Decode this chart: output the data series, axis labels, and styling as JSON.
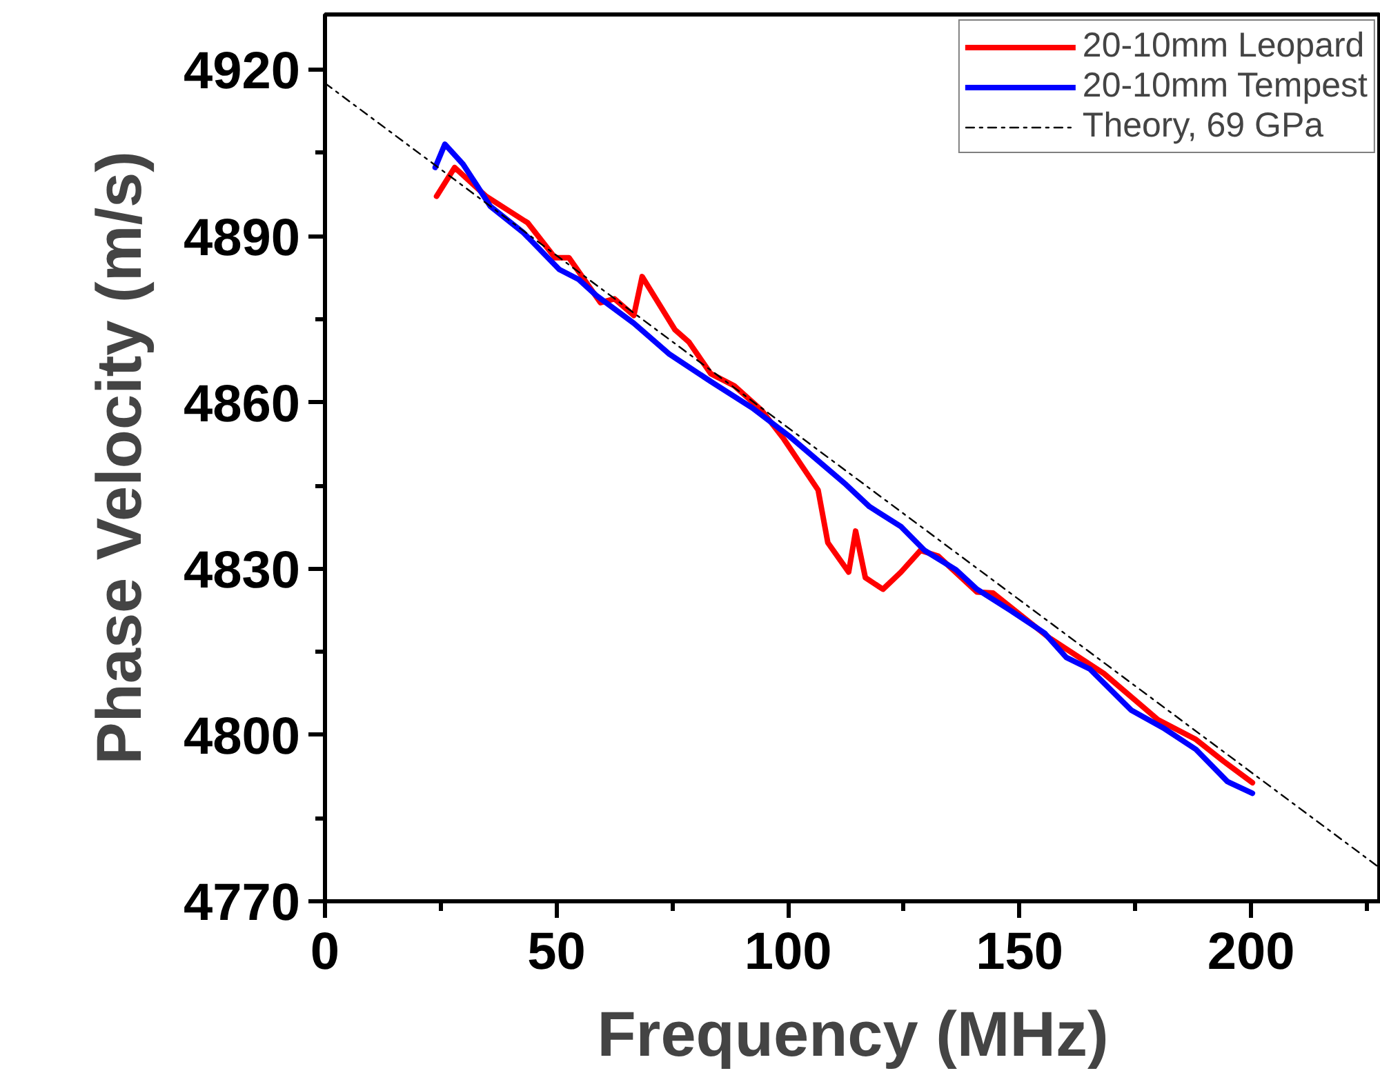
{
  "chart_data": {
    "type": "line",
    "xlabel": "Frequency (MHz)",
    "ylabel": "Phase Velocity (m/s)",
    "xlim": [
      0,
      228
    ],
    "ylim": [
      4770,
      4930
    ],
    "xticks": [
      0,
      {
        "value": 25,
        "label": null
      },
      50,
      {
        "value": 75,
        "label": null
      },
      100,
      {
        "value": 125,
        "label": null
      },
      150,
      {
        "value": 175,
        "label": null
      },
      200,
      {
        "value": 225,
        "label": null
      }
    ],
    "yticks": [
      4770,
      {
        "value": 4785,
        "label": null
      },
      4800,
      {
        "value": 4815,
        "label": null
      },
      4830,
      {
        "value": 4845,
        "label": null
      },
      4860,
      {
        "value": 4875,
        "label": null
      },
      4890,
      {
        "value": 4905,
        "label": null
      },
      4920
    ],
    "grid": false,
    "legend": "top right",
    "marker": "none",
    "series": [
      {
        "name": "20-10mm Leopard",
        "color": "#ff0000",
        "line_style": "solid",
        "x": [
          24.1,
          28,
          34.8,
          43.8,
          49.7,
          52.7,
          59.5,
          62.5,
          66.7,
          68.5,
          75.6,
          78.6,
          83.3,
          88.4,
          94.3,
          99.1,
          106.5,
          108.6,
          113.1,
          114.6,
          116.7,
          120.5,
          124.4,
          128.6,
          132.4,
          140.8,
          144.3,
          156.3,
          168.2,
          180,
          188.1,
          194,
          200.3
        ],
        "values": [
          4897.2,
          4902.4,
          4897.2,
          4892.4,
          4886.1,
          4886.1,
          4878.0,
          4878.7,
          4875.7,
          4882.7,
          4873.1,
          4870.9,
          4865.2,
          4863.0,
          4858.6,
          4853.4,
          4844.2,
          4834.7,
          4829.4,
          4836.8,
          4828.4,
          4826.3,
          4829.4,
          4833.3,
          4832.3,
          4825.8,
          4825.6,
          4817.6,
          4811.1,
          4802.7,
          4799.2,
          4795.3,
          4791.4
        ]
      },
      {
        "name": "20-10mm Tempest",
        "color": "#0000ff",
        "line_style": "solid",
        "x": [
          23.8,
          25.9,
          29.8,
          32.7,
          35.7,
          42.9,
          50.6,
          54.8,
          58.6,
          66.7,
          74.4,
          83.3,
          92.3,
          100.3,
          112.5,
          117.6,
          124.4,
          129.5,
          136.3,
          140.8,
          148.2,
          155.4,
          160.1,
          165.2,
          174.1,
          181,
          188.1,
          194.9,
          200.3
        ],
        "values": [
          4902.4,
          4906.6,
          4903.0,
          4899.3,
          4895.4,
          4890.6,
          4884.0,
          4882.2,
          4879.3,
          4874.3,
          4868.7,
          4863.8,
          4859.0,
          4853.9,
          4845.2,
          4841.2,
          4837.6,
          4833.3,
          4829.8,
          4826.3,
          4822.4,
          4818.4,
          4814.0,
          4811.9,
          4804.5,
          4801.3,
          4797.4,
          4791.6,
          4789.5
        ]
      },
      {
        "name": "Theory, 69 GPa",
        "color": "#000000",
        "line_style": "dashdot",
        "x": [
          0,
          228
        ],
        "values": [
          4917.6,
          4775.9
        ]
      }
    ]
  }
}
